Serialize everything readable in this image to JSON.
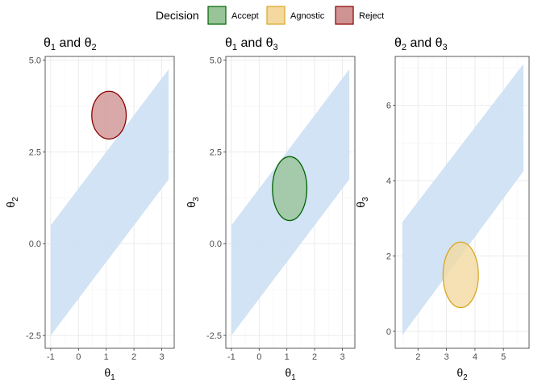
{
  "legend": {
    "title": "Decision",
    "items": [
      {
        "label": "Accept",
        "fill": "#99c398",
        "stroke": "#006400"
      },
      {
        "label": "Agnostic",
        "fill": "#f3d9a0",
        "stroke": "#daa520"
      },
      {
        "label": "Reject",
        "fill": "#cf9393",
        "stroke": "#8b0000"
      }
    ],
    "position": "top"
  },
  "colors": {
    "band_fill": "#cfe2f3",
    "grid_major": "#ebebeb",
    "grid_minor": "#f5f5f5",
    "panel_border": "#333333"
  },
  "chart_data": [
    {
      "type": "area",
      "title_sym_a": "θ",
      "title_sub_a": "1",
      "title_and": " and ",
      "title_sym_b": "θ",
      "title_sub_b": "2",
      "xlabel_sym": "θ",
      "xlabel_sub": "1",
      "ylabel_sym": "θ",
      "ylabel_sub": "2",
      "xlim": [
        -1.2,
        3.45
      ],
      "ylim": [
        -2.85,
        5.1
      ],
      "xticks": [
        -1,
        0,
        1,
        2,
        3
      ],
      "xtick_labels": [
        "-1",
        "0",
        "1",
        "2",
        "3"
      ],
      "yticks": [
        -2.5,
        0,
        2.5,
        5
      ],
      "ytick_labels": [
        "-2.5",
        "0.0",
        "2.5",
        "5.0"
      ],
      "band": {
        "x": [
          -1,
          3.25
        ],
        "lower": [
          -2.5,
          1.75
        ],
        "upper": [
          0.5,
          4.75
        ]
      },
      "ellipse": {
        "cx": 1.1,
        "cy": 3.5,
        "rx": 0.62,
        "ry": 0.65,
        "decision": "Reject"
      },
      "grid": true
    },
    {
      "type": "area",
      "title_sym_a": "θ",
      "title_sub_a": "1",
      "title_and": " and ",
      "title_sym_b": "θ",
      "title_sub_b": "3",
      "xlabel_sym": "θ",
      "xlabel_sub": "1",
      "ylabel_sym": "θ",
      "ylabel_sub": "3",
      "xlim": [
        -1.2,
        3.45
      ],
      "ylim": [
        -2.85,
        5.1
      ],
      "xticks": [
        -1,
        0,
        1,
        2,
        3
      ],
      "xtick_labels": [
        "-1",
        "0",
        "1",
        "2",
        "3"
      ],
      "yticks": [
        -2.5,
        0,
        2.5,
        5
      ],
      "ytick_labels": [
        "-2.5",
        "0.0",
        "2.5",
        "5.0"
      ],
      "band": {
        "x": [
          -1,
          3.25
        ],
        "lower": [
          -2.5,
          1.75
        ],
        "upper": [
          0.5,
          4.75
        ]
      },
      "ellipse": {
        "cx": 1.1,
        "cy": 1.5,
        "rx": 0.62,
        "ry": 0.87,
        "decision": "Accept"
      },
      "grid": true
    },
    {
      "type": "area",
      "title_sym_a": "θ",
      "title_sub_a": "2",
      "title_and": " and ",
      "title_sym_b": "θ",
      "title_sub_b": "3",
      "xlabel_sym": "θ",
      "xlabel_sub": "2",
      "ylabel_sym": "θ",
      "ylabel_sub": "3",
      "xlim": [
        1.2,
        5.9
      ],
      "ylim": [
        -0.45,
        7.3
      ],
      "xticks": [
        2,
        3,
        4,
        5
      ],
      "xtick_labels": [
        "2",
        "3",
        "4",
        "5"
      ],
      "yticks": [
        0,
        2,
        4,
        6
      ],
      "ytick_labels": [
        "0",
        "2",
        "4",
        "6"
      ],
      "band": {
        "x": [
          1.45,
          5.7
        ],
        "lower": [
          -0.1,
          4.25
        ],
        "upper": [
          2.9,
          7.1
        ]
      },
      "ellipse": {
        "cx": 3.5,
        "cy": 1.5,
        "rx": 0.62,
        "ry": 0.87,
        "decision": "Agnostic"
      },
      "grid": true
    }
  ]
}
